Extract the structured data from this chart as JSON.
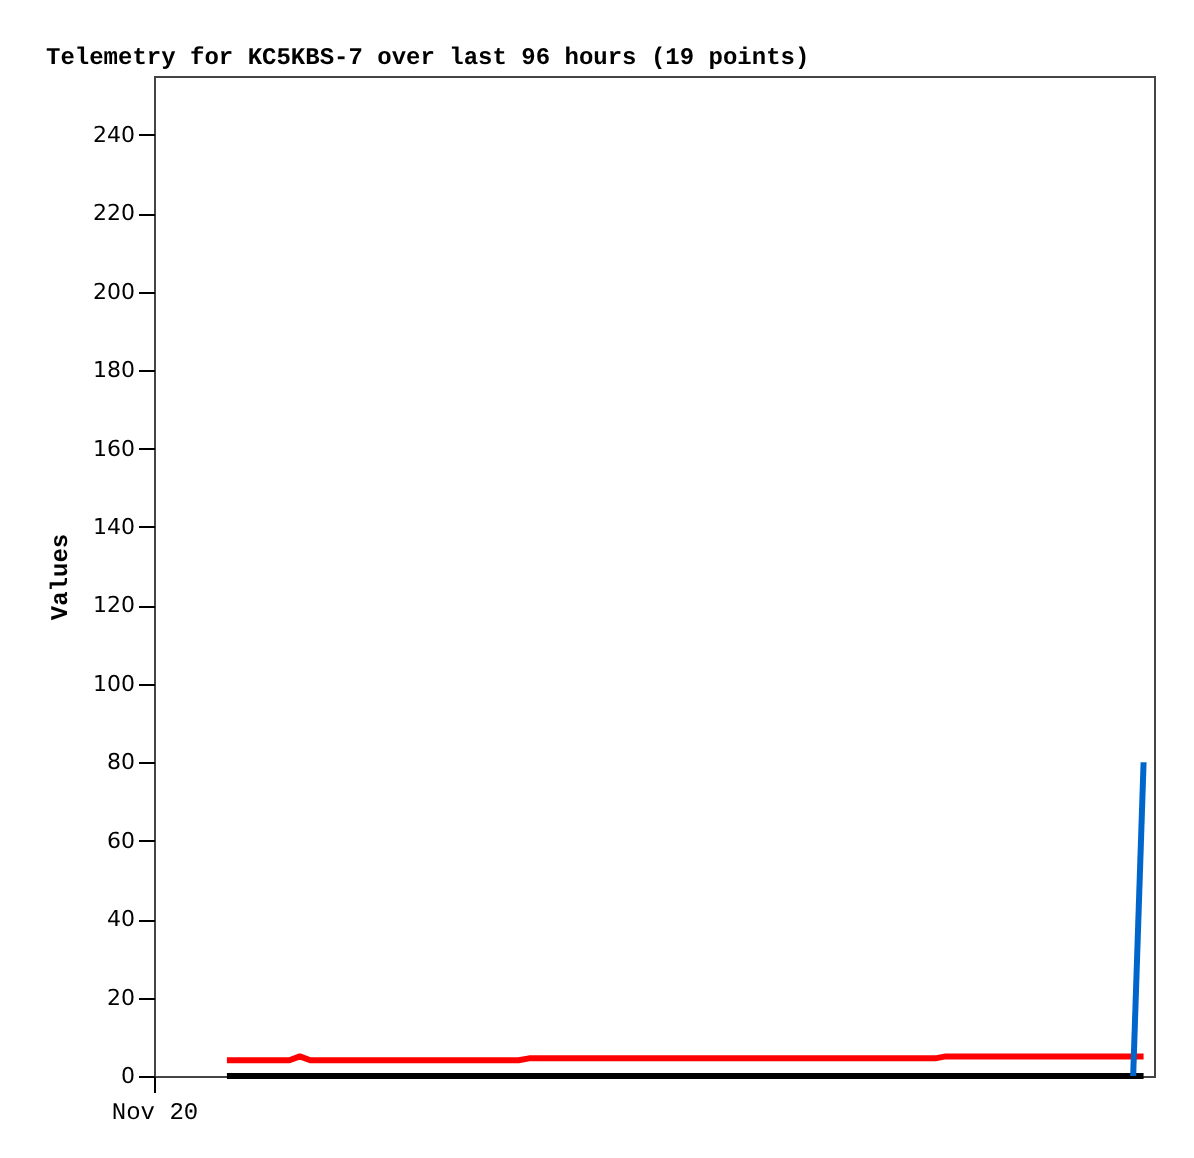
{
  "chart_data": {
    "type": "line",
    "title": "Telemetry for KC5KBS-7 over last 96 hours (19 points)",
    "ylabel": "Values",
    "categories": [
      "Nov 20",
      null,
      null,
      null,
      null,
      null,
      null,
      null,
      null,
      null,
      null,
      null,
      null,
      null,
      null,
      null,
      null,
      null,
      null,
      null,
      null,
      null,
      null,
      null,
      null,
      null,
      null,
      null,
      null,
      null,
      null,
      null,
      null,
      null,
      null,
      null,
      null,
      null,
      null,
      null,
      null,
      null,
      null,
      null,
      null,
      null,
      null,
      null,
      null,
      null,
      null,
      null,
      null,
      null,
      null,
      null,
      null,
      null,
      null,
      null,
      null,
      null,
      null,
      null,
      null,
      null,
      null,
      null,
      null,
      null,
      null,
      null,
      null,
      null,
      null,
      null,
      null,
      null,
      null,
      null,
      null,
      null,
      null,
      null,
      null,
      null,
      null,
      null,
      null,
      null,
      null,
      null,
      null,
      null,
      null,
      null,
      null
    ],
    "ylim": [
      0,
      255
    ],
    "yticks": [
      0,
      20,
      40,
      60,
      80,
      100,
      120,
      140,
      160,
      180,
      200,
      220,
      240
    ],
    "grid": false,
    "legend": false,
    "series": [
      {
        "color": "#ff0000",
        "values": [
          null,
          null,
          null,
          null,
          null,
          null,
          null,
          4,
          4,
          4,
          4,
          4,
          4,
          4,
          5,
          4,
          4,
          4,
          4,
          4,
          4,
          4,
          4,
          4,
          4,
          4,
          4,
          4,
          4,
          4,
          4,
          4,
          4,
          4,
          4,
          4,
          4.5,
          4.5,
          4.5,
          4.5,
          4.5,
          4.5,
          4.5,
          4.5,
          4.5,
          4.5,
          4.5,
          4.5,
          4.5,
          4.5,
          4.5,
          4.5,
          4.5,
          4.5,
          4.5,
          4.5,
          4.5,
          4.5,
          4.5,
          4.5,
          4.5,
          4.5,
          4.5,
          4.5,
          4.5,
          4.5,
          4.5,
          4.5,
          4.5,
          4.5,
          4.5,
          4.5,
          4.5,
          4.5,
          4.5,
          4.5,
          5,
          5,
          5,
          5,
          5,
          5,
          5,
          5,
          5,
          5,
          5,
          5,
          5,
          5,
          5,
          5,
          5,
          5,
          5,
          5,
          null
        ]
      },
      {
        "color": "#000000",
        "values": [
          null,
          null,
          null,
          null,
          null,
          null,
          null,
          0,
          0,
          0,
          0,
          0,
          0,
          0,
          0,
          0,
          0,
          0,
          0,
          0,
          0,
          0,
          0,
          0,
          0,
          0,
          0,
          0,
          0,
          0,
          0,
          0,
          0,
          0,
          0,
          0,
          0,
          0,
          0,
          0,
          0,
          0,
          0,
          0,
          0,
          0,
          0,
          0,
          0,
          0,
          0,
          0,
          0,
          0,
          0,
          0,
          0,
          0,
          0,
          0,
          0,
          0,
          0,
          0,
          0,
          0,
          0,
          0,
          0,
          0,
          0,
          0,
          0,
          0,
          0,
          0,
          0,
          0,
          0,
          0,
          0,
          0,
          0,
          0,
          0,
          0,
          0,
          0,
          0,
          0,
          0,
          0,
          0,
          0,
          0,
          0,
          null
        ]
      },
      {
        "color": "#0066cc",
        "values": [
          null,
          null,
          null,
          null,
          null,
          null,
          null,
          null,
          null,
          null,
          null,
          null,
          null,
          null,
          null,
          null,
          null,
          null,
          null,
          null,
          null,
          null,
          null,
          null,
          null,
          null,
          null,
          null,
          null,
          null,
          null,
          null,
          null,
          null,
          null,
          null,
          null,
          null,
          null,
          null,
          null,
          null,
          null,
          null,
          null,
          null,
          null,
          null,
          null,
          null,
          null,
          null,
          null,
          null,
          null,
          null,
          null,
          null,
          null,
          null,
          null,
          null,
          null,
          null,
          null,
          null,
          null,
          null,
          null,
          null,
          null,
          null,
          null,
          null,
          null,
          null,
          null,
          null,
          null,
          null,
          null,
          null,
          null,
          null,
          null,
          null,
          null,
          null,
          null,
          null,
          null,
          null,
          null,
          null,
          0,
          80,
          null
        ]
      }
    ]
  }
}
